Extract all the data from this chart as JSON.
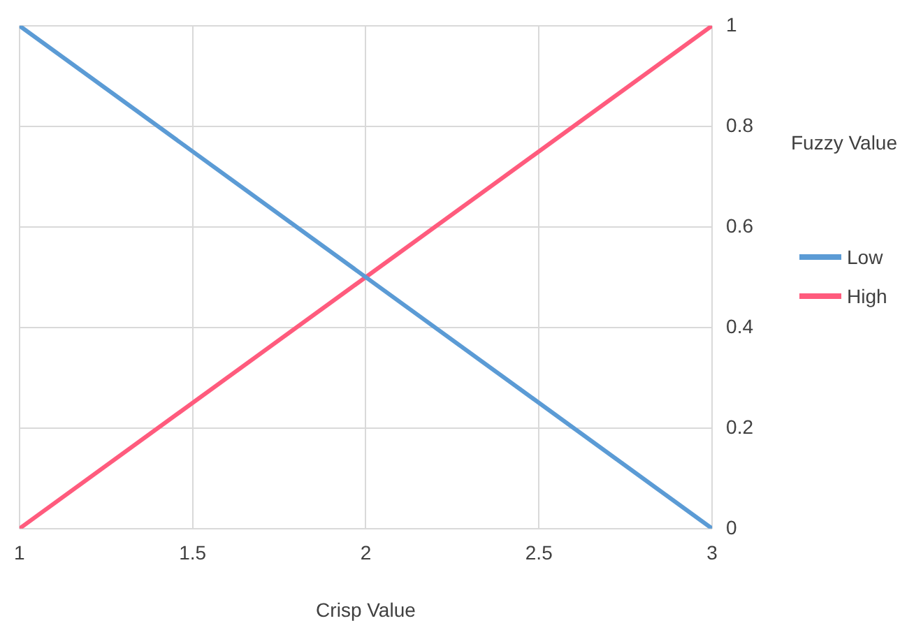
{
  "chart_data": {
    "type": "line",
    "xlabel": "Crisp Value",
    "ylabel": "Fuzzy Value",
    "x": [
      1,
      3
    ],
    "series": [
      {
        "name": "Low",
        "color": "#5b9bd5",
        "values": [
          1,
          0
        ]
      },
      {
        "name": "High",
        "color": "#ff5b7d",
        "values": [
          0,
          1
        ]
      }
    ],
    "xlim": [
      1,
      3
    ],
    "xticks": [
      1,
      1.5,
      2,
      2.5,
      3
    ],
    "ylim": [
      0,
      1
    ],
    "yticks": [
      0,
      0.2,
      0.4,
      0.6,
      0.8,
      1
    ],
    "grid": true,
    "legend": "right",
    "marker": "none",
    "line_style": "solid"
  }
}
